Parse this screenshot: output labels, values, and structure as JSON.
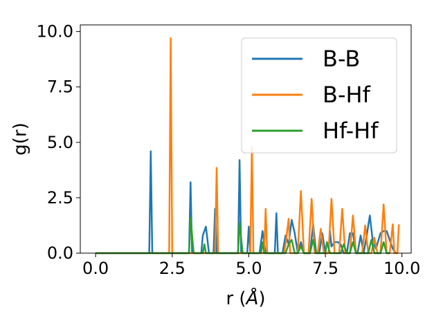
{
  "chart_data": {
    "type": "line",
    "xlabel_main": "r (",
    "xlabel_unit": "Å",
    "xlabel_close": ")",
    "ylabel": "g(r)",
    "xlim": [
      -0.5,
      10.3
    ],
    "ylim": [
      0,
      10.3
    ],
    "x_ticks": [
      0.0,
      2.5,
      5.0,
      7.5,
      10.0
    ],
    "x_tick_labels": [
      "0.0",
      "2.5",
      "5.0",
      "7.5",
      "10.0"
    ],
    "y_ticks": [
      0.0,
      2.5,
      5.0,
      7.5,
      10.0
    ],
    "y_tick_labels": [
      "0.0",
      "2.5",
      "5.0",
      "7.5",
      "10.0"
    ],
    "legend_position": "upper right",
    "grid": false,
    "series": [
      {
        "name": "B-B",
        "color": "#1f77b4",
        "points": [
          [
            0.0,
            0
          ],
          [
            1.75,
            0
          ],
          [
            1.8,
            4.6
          ],
          [
            1.85,
            0
          ],
          [
            3.05,
            0
          ],
          [
            3.1,
            3.2
          ],
          [
            3.15,
            0
          ],
          [
            3.45,
            0
          ],
          [
            3.5,
            0.8
          ],
          [
            3.6,
            1.2
          ],
          [
            3.7,
            0
          ],
          [
            3.85,
            0
          ],
          [
            3.9,
            2.0
          ],
          [
            3.95,
            0
          ],
          [
            4.65,
            0
          ],
          [
            4.7,
            4.2
          ],
          [
            4.75,
            0
          ],
          [
            4.95,
            0
          ],
          [
            5.0,
            1.2
          ],
          [
            5.05,
            0
          ],
          [
            5.35,
            0
          ],
          [
            5.45,
            1.0
          ],
          [
            5.55,
            0
          ],
          [
            5.85,
            0
          ],
          [
            5.9,
            1.8
          ],
          [
            5.95,
            0
          ],
          [
            6.1,
            0
          ],
          [
            6.2,
            0.8
          ],
          [
            6.3,
            0.4
          ],
          [
            6.4,
            1.5
          ],
          [
            6.5,
            0.9
          ],
          [
            6.6,
            0
          ],
          [
            6.7,
            0.5
          ],
          [
            6.8,
            0
          ],
          [
            7.0,
            0
          ],
          [
            7.1,
            1.3
          ],
          [
            7.2,
            0
          ],
          [
            7.3,
            0
          ],
          [
            7.4,
            0.9
          ],
          [
            7.5,
            0
          ],
          [
            7.6,
            0
          ],
          [
            7.65,
            1.0
          ],
          [
            7.7,
            0.3
          ],
          [
            7.8,
            0.5
          ],
          [
            7.9,
            0.5
          ],
          [
            8.0,
            0.4
          ],
          [
            8.1,
            0
          ],
          [
            8.2,
            0
          ],
          [
            8.3,
            0.9
          ],
          [
            8.4,
            0.9
          ],
          [
            8.5,
            0
          ],
          [
            8.55,
            0
          ],
          [
            8.65,
            0.8
          ],
          [
            8.75,
            0
          ],
          [
            8.85,
            0.8
          ],
          [
            8.95,
            1.7
          ],
          [
            9.05,
            0.5
          ],
          [
            9.15,
            0.2
          ],
          [
            9.3,
            0.9
          ],
          [
            9.4,
            1.0
          ],
          [
            9.5,
            1.0
          ],
          [
            9.6,
            0.6
          ],
          [
            9.7,
            0.2
          ],
          [
            9.8,
            0
          ]
        ]
      },
      {
        "name": "B-Hf",
        "color": "#ff7f0e",
        "points": [
          [
            0.0,
            0
          ],
          [
            2.4,
            0
          ],
          [
            2.45,
            9.7
          ],
          [
            2.5,
            0
          ],
          [
            3.9,
            0
          ],
          [
            3.95,
            3.85
          ],
          [
            4.0,
            0
          ],
          [
            5.05,
            0
          ],
          [
            5.1,
            4.8
          ],
          [
            5.15,
            0
          ],
          [
            5.5,
            0
          ],
          [
            5.55,
            2.0
          ],
          [
            5.6,
            0
          ],
          [
            6.15,
            0
          ],
          [
            6.2,
            0.4
          ],
          [
            6.3,
            1.55
          ],
          [
            6.35,
            0
          ],
          [
            6.6,
            0
          ],
          [
            6.7,
            2.8
          ],
          [
            6.8,
            0
          ],
          [
            6.95,
            0
          ],
          [
            7.05,
            2.45
          ],
          [
            7.15,
            0
          ],
          [
            7.25,
            0
          ],
          [
            7.35,
            1.1
          ],
          [
            7.45,
            0
          ],
          [
            7.6,
            0
          ],
          [
            7.7,
            2.45
          ],
          [
            7.8,
            0
          ],
          [
            7.95,
            0
          ],
          [
            8.05,
            2.0
          ],
          [
            8.15,
            0
          ],
          [
            8.3,
            0
          ],
          [
            8.4,
            1.7
          ],
          [
            8.5,
            0
          ],
          [
            8.7,
            0
          ],
          [
            8.8,
            1.25
          ],
          [
            8.9,
            0
          ],
          [
            9.0,
            0
          ],
          [
            9.1,
            0.7
          ],
          [
            9.2,
            0
          ],
          [
            9.3,
            0
          ],
          [
            9.4,
            2.2
          ],
          [
            9.5,
            0
          ],
          [
            9.6,
            0
          ],
          [
            9.7,
            1.3
          ],
          [
            9.75,
            0
          ],
          [
            9.85,
            0
          ],
          [
            9.9,
            1.3
          ]
        ]
      },
      {
        "name": "Hf-Hf",
        "color": "#2ca02c",
        "points": [
          [
            0.0,
            0
          ],
          [
            3.05,
            0
          ],
          [
            3.1,
            1.6
          ],
          [
            3.2,
            0
          ],
          [
            3.5,
            0
          ],
          [
            3.55,
            0.4
          ],
          [
            3.6,
            0
          ],
          [
            4.65,
            0
          ],
          [
            4.7,
            1.4
          ],
          [
            4.8,
            0
          ],
          [
            5.4,
            0
          ],
          [
            5.45,
            0.5
          ],
          [
            5.5,
            0
          ],
          [
            6.2,
            0
          ],
          [
            6.3,
            0.4
          ],
          [
            6.4,
            0.6
          ],
          [
            6.5,
            0
          ],
          [
            6.6,
            0
          ],
          [
            6.7,
            0.3
          ],
          [
            6.8,
            0
          ],
          [
            7.0,
            0
          ],
          [
            7.1,
            0.6
          ],
          [
            7.2,
            0
          ],
          [
            7.5,
            0
          ],
          [
            7.55,
            0.5
          ],
          [
            7.65,
            0
          ],
          [
            8.0,
            0
          ],
          [
            8.1,
            0.4
          ],
          [
            8.2,
            0
          ],
          [
            8.3,
            0
          ],
          [
            8.4,
            0.5
          ],
          [
            8.5,
            0
          ],
          [
            8.9,
            0
          ],
          [
            9.0,
            0.6
          ],
          [
            9.1,
            0
          ],
          [
            9.3,
            0
          ],
          [
            9.4,
            0.5
          ],
          [
            9.5,
            0
          ],
          [
            9.6,
            0
          ]
        ]
      }
    ]
  }
}
